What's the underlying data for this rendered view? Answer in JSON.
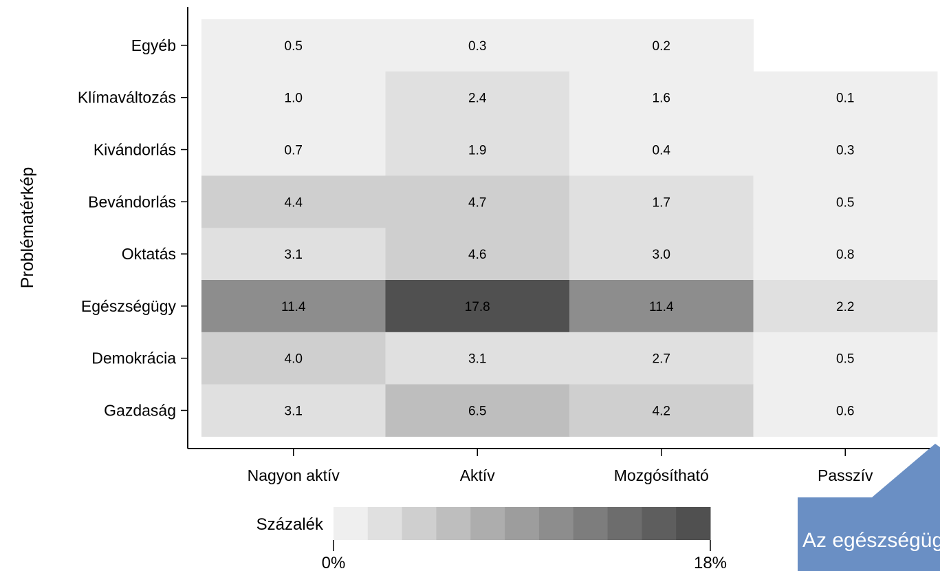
{
  "chart_data": {
    "type": "heatmap",
    "ylabel": "Problématérkép",
    "xlabel": "",
    "categories_x": [
      "Nagyon aktív",
      "Aktív",
      "Mozgósítható",
      "Passzív"
    ],
    "categories_y": [
      "Egyéb",
      "Klímaváltozás",
      "Kivándorlás",
      "Bevándorlás",
      "Oktatás",
      "Egészségügy",
      "Demokrácia",
      "Gazdaság"
    ],
    "values": [
      [
        0.5,
        0.3,
        0.2,
        null
      ],
      [
        1.0,
        2.4,
        1.6,
        0.1
      ],
      [
        0.7,
        1.9,
        0.4,
        0.3
      ],
      [
        4.4,
        4.7,
        1.7,
        0.5
      ],
      [
        3.1,
        4.6,
        3.0,
        0.8
      ],
      [
        11.4,
        17.8,
        11.4,
        2.2
      ],
      [
        4.0,
        3.1,
        2.7,
        0.5
      ],
      [
        3.1,
        6.5,
        4.2,
        0.6
      ]
    ],
    "value_labels": [
      [
        "0.5",
        "0.3",
        "0.2",
        ""
      ],
      [
        "1.0",
        "2.4",
        "1.6",
        "0.1"
      ],
      [
        "0.7",
        "1.9",
        "0.4",
        "0.3"
      ],
      [
        "4.4",
        "4.7",
        "1.7",
        "0.5"
      ],
      [
        "3.1",
        "4.6",
        "3.0",
        "0.8"
      ],
      [
        "11.4",
        "17.8",
        "11.4",
        "2.2"
      ],
      [
        "4.0",
        "3.1",
        "2.7",
        "0.5"
      ],
      [
        "3.1",
        "6.5",
        "4.2",
        "0.6"
      ]
    ],
    "legend": {
      "title": "Százalék",
      "min_label": "0%",
      "max_label": "18%",
      "min": 0,
      "max": 18,
      "steps": 11,
      "colors": [
        "#efefef",
        "#e0e0e0",
        "#cfcfcf",
        "#bebebe",
        "#adadad",
        "#9d9d9d",
        "#8d8d8d",
        "#7d7d7d",
        "#6d6d6d",
        "#5e5e5e",
        "#505050"
      ]
    },
    "grid": false
  },
  "callout": {
    "text": "Az egészségügy",
    "color": "#6a8fc4"
  }
}
